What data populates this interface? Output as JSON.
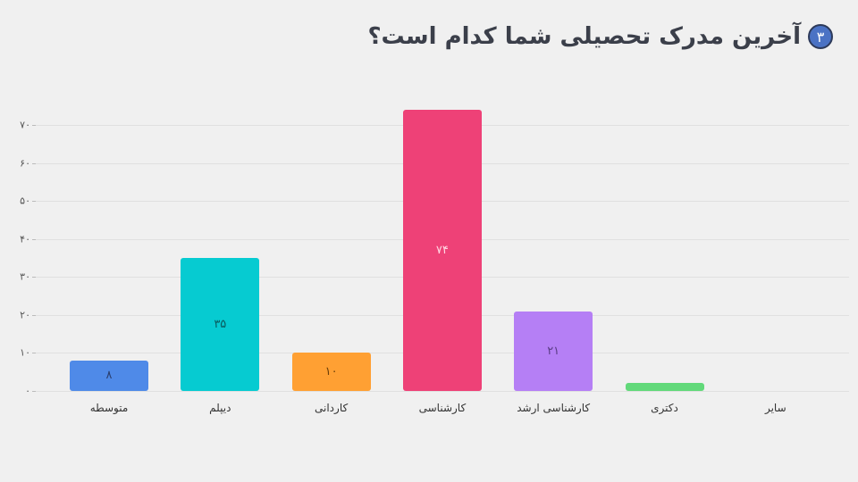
{
  "header": {
    "number": "۳",
    "title": "آخرین مدرک تحصیلی شما کدام است؟"
  },
  "chart_data": {
    "type": "bar",
    "title": "آخرین مدرک تحصیلی شما کدام است؟",
    "xlabel": "",
    "ylabel": "",
    "categories": [
      "متوسطه",
      "دیپلم",
      "کاردانی",
      "کارشناسی",
      "کارشناسی ارشد",
      "دکتری",
      "سایر"
    ],
    "values": [
      8,
      35,
      10,
      74,
      21,
      2,
      0
    ],
    "value_labels": [
      "۸",
      "۳۵",
      "۱۰",
      "۷۴",
      "۲۱",
      "",
      ""
    ],
    "colors": [
      "#4f8ae8",
      "#06cbd1",
      "#ffa033",
      "#ee4177",
      "#b57ff5",
      "#62d97a",
      "#cccccc"
    ],
    "label_colors": [
      "#2b3f6e",
      "#0a5b5e",
      "#6b3f0a",
      "#ffd6e2",
      "#5a3c85",
      "",
      ""
    ],
    "ylim": [
      0,
      74
    ],
    "yticks": [
      "۰",
      "۱۰",
      "۲۰",
      "۳۰",
      "۴۰",
      "۵۰",
      "۶۰",
      "۷۰"
    ],
    "grid": true,
    "legend": "none"
  }
}
